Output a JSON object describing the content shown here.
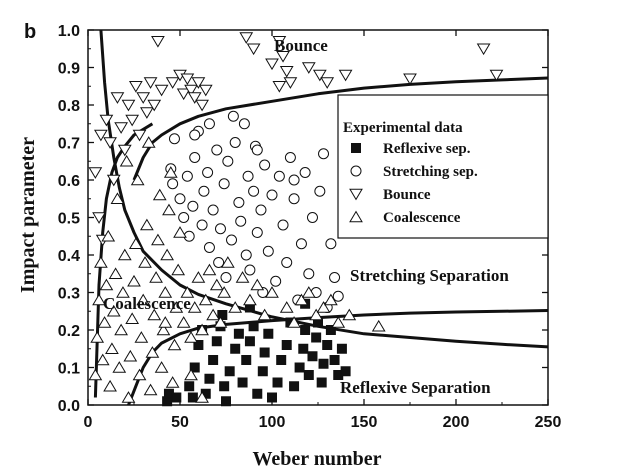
{
  "panel_label": "b",
  "chart_data": {
    "type": "scatter",
    "xlabel": "Weber number",
    "ylabel": "Impact parameter",
    "xlim": [
      0,
      250
    ],
    "ylim": [
      0,
      1.0
    ],
    "x_ticks": [
      "0",
      "50",
      "100",
      "150",
      "200",
      "250"
    ],
    "y_ticks": [
      "0.0",
      "0.1",
      "0.2",
      "0.3",
      "0.4",
      "0.5",
      "0.6",
      "0.7",
      "0.8",
      "0.9",
      "1.0"
    ],
    "legend": {
      "title": "Experimental data",
      "position": "upper-right",
      "entries": [
        "Reflexive sep.",
        "Stretching sep.",
        "Bounce",
        "Coalescence"
      ]
    },
    "annotations": [
      "Bounce",
      "Stretching Separation",
      "Coalescence",
      "Reflexive Separation"
    ],
    "series": [
      {
        "name": "Reflexive sep.",
        "marker": "filled-square",
        "points": [
          [
            43,
            0.01
          ],
          [
            44,
            0.03
          ],
          [
            48,
            0.02
          ],
          [
            55,
            0.05
          ],
          [
            58,
            0.1
          ],
          [
            60,
            0.16
          ],
          [
            62,
            0.2
          ],
          [
            64,
            0.03
          ],
          [
            66,
            0.07
          ],
          [
            68,
            0.12
          ],
          [
            70,
            0.17
          ],
          [
            72,
            0.21
          ],
          [
            74,
            0.05
          ],
          [
            75,
            0.01
          ],
          [
            77,
            0.09
          ],
          [
            80,
            0.15
          ],
          [
            82,
            0.19
          ],
          [
            84,
            0.06
          ],
          [
            86,
            0.12
          ],
          [
            88,
            0.17
          ],
          [
            90,
            0.21
          ],
          [
            92,
            0.03
          ],
          [
            95,
            0.09
          ],
          [
            96,
            0.14
          ],
          [
            98,
            0.19
          ],
          [
            100,
            0.02
          ],
          [
            103,
            0.06
          ],
          [
            105,
            0.12
          ],
          [
            108,
            0.16
          ],
          [
            110,
            0.22
          ],
          [
            112,
            0.05
          ],
          [
            115,
            0.1
          ],
          [
            117,
            0.15
          ],
          [
            118,
            0.2
          ],
          [
            120,
            0.08
          ],
          [
            122,
            0.13
          ],
          [
            124,
            0.18
          ],
          [
            125,
            0.22
          ],
          [
            127,
            0.06
          ],
          [
            128,
            0.11
          ],
          [
            130,
            0.16
          ],
          [
            132,
            0.2
          ],
          [
            134,
            0.12
          ],
          [
            136,
            0.08
          ],
          [
            138,
            0.15
          ],
          [
            140,
            0.09
          ],
          [
            57,
            0.02
          ],
          [
            73,
            0.24
          ],
          [
            88,
            0.26
          ],
          [
            118,
            0.27
          ]
        ]
      },
      {
        "name": "Stretching sep.",
        "marker": "open-circle",
        "points": [
          [
            45,
            0.63
          ],
          [
            46,
            0.59
          ],
          [
            47,
            0.71
          ],
          [
            50,
            0.55
          ],
          [
            52,
            0.5
          ],
          [
            54,
            0.61
          ],
          [
            55,
            0.45
          ],
          [
            57,
            0.53
          ],
          [
            58,
            0.66
          ],
          [
            60,
            0.73
          ],
          [
            62,
            0.48
          ],
          [
            63,
            0.57
          ],
          [
            65,
            0.62
          ],
          [
            66,
            0.42
          ],
          [
            68,
            0.52
          ],
          [
            70,
            0.68
          ],
          [
            71,
            0.38
          ],
          [
            72,
            0.47
          ],
          [
            74,
            0.59
          ],
          [
            75,
            0.34
          ],
          [
            76,
            0.65
          ],
          [
            78,
            0.44
          ],
          [
            80,
            0.7
          ],
          [
            82,
            0.54
          ],
          [
            83,
            0.49
          ],
          [
            85,
            0.75
          ],
          [
            86,
            0.4
          ],
          [
            87,
            0.61
          ],
          [
            88,
            0.36
          ],
          [
            90,
            0.57
          ],
          [
            91,
            0.69
          ],
          [
            92,
            0.46
          ],
          [
            94,
            0.52
          ],
          [
            95,
            0.3
          ],
          [
            96,
            0.64
          ],
          [
            98,
            0.41
          ],
          [
            100,
            0.56
          ],
          [
            102,
            0.33
          ],
          [
            104,
            0.61
          ],
          [
            106,
            0.48
          ],
          [
            108,
            0.38
          ],
          [
            110,
            0.66
          ],
          [
            112,
            0.55
          ],
          [
            114,
            0.28
          ],
          [
            116,
            0.43
          ],
          [
            118,
            0.62
          ],
          [
            120,
            0.35
          ],
          [
            122,
            0.5
          ],
          [
            124,
            0.3
          ],
          [
            126,
            0.57
          ],
          [
            128,
            0.67
          ],
          [
            130,
            0.26
          ],
          [
            132,
            0.43
          ],
          [
            134,
            0.34
          ],
          [
            136,
            0.29
          ],
          [
            112,
            0.6
          ],
          [
            66,
            0.75
          ],
          [
            79,
            0.77
          ],
          [
            58,
            0.72
          ],
          [
            92,
            0.68
          ]
        ]
      },
      {
        "name": "Bounce",
        "marker": "open-triangle-down",
        "points": [
          [
            4,
            0.62
          ],
          [
            6,
            0.5
          ],
          [
            7,
            0.72
          ],
          [
            8,
            0.44
          ],
          [
            10,
            0.76
          ],
          [
            12,
            0.7
          ],
          [
            14,
            0.6
          ],
          [
            16,
            0.82
          ],
          [
            18,
            0.74
          ],
          [
            20,
            0.68
          ],
          [
            22,
            0.8
          ],
          [
            24,
            0.76
          ],
          [
            26,
            0.85
          ],
          [
            28,
            0.72
          ],
          [
            30,
            0.82
          ],
          [
            32,
            0.78
          ],
          [
            34,
            0.86
          ],
          [
            36,
            0.8
          ],
          [
            38,
            0.97
          ],
          [
            40,
            0.84
          ],
          [
            46,
            0.86
          ],
          [
            50,
            0.88
          ],
          [
            52,
            0.83
          ],
          [
            54,
            0.87
          ],
          [
            56,
            0.84
          ],
          [
            58,
            0.82
          ],
          [
            60,
            0.86
          ],
          [
            62,
            0.8
          ],
          [
            64,
            0.84
          ],
          [
            86,
            0.98
          ],
          [
            90,
            0.95
          ],
          [
            100,
            0.91
          ],
          [
            104,
            0.85
          ],
          [
            106,
            0.93
          ],
          [
            108,
            0.89
          ],
          [
            110,
            0.86
          ],
          [
            120,
            0.9
          ],
          [
            126,
            0.88
          ],
          [
            130,
            0.86
          ],
          [
            140,
            0.88
          ],
          [
            175,
            0.87
          ],
          [
            215,
            0.95
          ],
          [
            222,
            0.88
          ],
          [
            104,
            0.97
          ]
        ]
      },
      {
        "name": "Coalescence",
        "marker": "open-triangle-up",
        "points": [
          [
            4,
            0.08
          ],
          [
            5,
            0.18
          ],
          [
            6,
            0.28
          ],
          [
            7,
            0.38
          ],
          [
            8,
            0.12
          ],
          [
            9,
            0.22
          ],
          [
            10,
            0.32
          ],
          [
            11,
            0.45
          ],
          [
            12,
            0.05
          ],
          [
            13,
            0.15
          ],
          [
            14,
            0.25
          ],
          [
            15,
            0.35
          ],
          [
            16,
            0.55
          ],
          [
            17,
            0.1
          ],
          [
            18,
            0.2
          ],
          [
            19,
            0.3
          ],
          [
            20,
            0.4
          ],
          [
            21,
            0.65
          ],
          [
            22,
            0.02
          ],
          [
            23,
            0.13
          ],
          [
            24,
            0.23
          ],
          [
            25,
            0.33
          ],
          [
            26,
            0.43
          ],
          [
            27,
            0.6
          ],
          [
            28,
            0.08
          ],
          [
            29,
            0.18
          ],
          [
            30,
            0.28
          ],
          [
            31,
            0.38
          ],
          [
            32,
            0.48
          ],
          [
            33,
            0.7
          ],
          [
            34,
            0.04
          ],
          [
            35,
            0.14
          ],
          [
            36,
            0.24
          ],
          [
            37,
            0.34
          ],
          [
            38,
            0.44
          ],
          [
            39,
            0.56
          ],
          [
            40,
            0.1
          ],
          [
            41,
            0.2
          ],
          [
            42,
            0.3
          ],
          [
            43,
            0.4
          ],
          [
            44,
            0.52
          ],
          [
            45,
            0.62
          ],
          [
            46,
            0.06
          ],
          [
            47,
            0.16
          ],
          [
            48,
            0.26
          ],
          [
            49,
            0.36
          ],
          [
            50,
            0.46
          ],
          [
            52,
            0.22
          ],
          [
            54,
            0.3
          ],
          [
            56,
            0.18
          ],
          [
            58,
            0.26
          ],
          [
            60,
            0.34
          ],
          [
            62,
            0.2
          ],
          [
            64,
            0.28
          ],
          [
            66,
            0.36
          ],
          [
            68,
            0.24
          ],
          [
            70,
            0.32
          ],
          [
            72,
            0.22
          ],
          [
            74,
            0.3
          ],
          [
            76,
            0.38
          ],
          [
            80,
            0.26
          ],
          [
            84,
            0.34
          ],
          [
            88,
            0.28
          ],
          [
            92,
            0.32
          ],
          [
            96,
            0.24
          ],
          [
            100,
            0.3
          ],
          [
            108,
            0.26
          ],
          [
            112,
            0.22
          ],
          [
            116,
            0.28
          ],
          [
            120,
            0.3
          ],
          [
            124,
            0.24
          ],
          [
            128,
            0.26
          ],
          [
            132,
            0.28
          ],
          [
            136,
            0.22
          ],
          [
            142,
            0.24
          ],
          [
            158,
            0.21
          ],
          [
            62,
            0.02
          ],
          [
            56,
            0.08
          ],
          [
            42,
            0.22
          ]
        ]
      }
    ],
    "curves": [
      {
        "description": "boundary bounce/stretching",
        "points": [
          [
            25,
            0.6
          ],
          [
            30,
            0.66
          ],
          [
            35,
            0.7
          ],
          [
            40,
            0.72
          ],
          [
            50,
            0.75
          ],
          [
            60,
            0.77
          ],
          [
            75,
            0.79
          ],
          [
            100,
            0.81
          ],
          [
            125,
            0.83
          ],
          [
            150,
            0.845
          ],
          [
            175,
            0.855
          ],
          [
            200,
            0.862
          ],
          [
            225,
            0.867
          ],
          [
            250,
            0.872
          ]
        ]
      },
      {
        "description": "boundary coalescence/stretching",
        "points": [
          [
            7,
            1.0
          ],
          [
            9,
            0.86
          ],
          [
            11,
            0.76
          ],
          [
            14,
            0.66
          ],
          [
            17,
            0.58
          ],
          [
            20,
            0.52
          ],
          [
            25,
            0.46
          ],
          [
            30,
            0.41
          ],
          [
            40,
            0.36
          ],
          [
            50,
            0.32
          ],
          [
            60,
            0.295
          ],
          [
            75,
            0.27
          ],
          [
            100,
            0.235
          ],
          [
            125,
            0.21
          ],
          [
            150,
            0.19
          ],
          [
            175,
            0.18
          ],
          [
            200,
            0.17
          ],
          [
            225,
            0.162
          ],
          [
            250,
            0.155
          ]
        ]
      },
      {
        "description": "boundary coalescence/bounce",
        "points": [
          [
            4,
            0.02
          ],
          [
            6,
            0.32
          ],
          [
            8,
            0.46
          ],
          [
            10,
            0.55
          ],
          [
            13,
            0.62
          ],
          [
            16,
            0.66
          ],
          [
            20,
            0.69
          ],
          [
            25,
            0.72
          ],
          [
            35,
            0.75
          ]
        ]
      },
      {
        "description": "boundary reflexive separation",
        "points": [
          [
            22,
            0.0
          ],
          [
            26,
            0.05
          ],
          [
            30,
            0.1
          ],
          [
            35,
            0.14
          ],
          [
            40,
            0.165
          ],
          [
            50,
            0.19
          ],
          [
            60,
            0.205
          ],
          [
            75,
            0.215
          ],
          [
            100,
            0.225
          ],
          [
            125,
            0.233
          ],
          [
            150,
            0.24
          ],
          [
            175,
            0.245
          ],
          [
            200,
            0.248
          ],
          [
            225,
            0.25
          ],
          [
            250,
            0.252
          ]
        ]
      }
    ]
  }
}
